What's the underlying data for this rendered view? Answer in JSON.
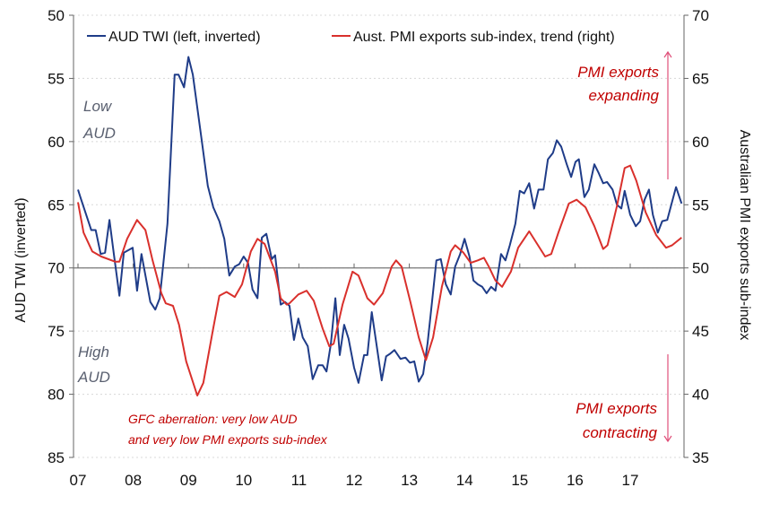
{
  "chart_data": {
    "type": "line",
    "title": "",
    "xlabel": "",
    "x_ticks": [
      "07",
      "08",
      "09",
      "10",
      "11",
      "12",
      "13",
      "14",
      "15",
      "16",
      "17"
    ],
    "x_tick_years": [
      2007,
      2008,
      2009,
      2010,
      2011,
      2012,
      2013,
      2014,
      2015,
      2016,
      2017
    ],
    "xlim": [
      2006.9,
      2018.0
    ],
    "left_axis": {
      "label": "AUD TWI (inverted)",
      "ylim": [
        50,
        85
      ],
      "inverted": true,
      "ticks": [
        "50",
        "55",
        "60",
        "65",
        "70",
        "75",
        "80",
        "85"
      ]
    },
    "right_axis": {
      "label": "Australian PMI exports sub-index",
      "ylim": [
        35,
        70
      ],
      "ticks": [
        "70",
        "65",
        "60",
        "55",
        "50",
        "45",
        "40",
        "35"
      ]
    },
    "reference_line": {
      "axis": "left",
      "value": 70
    },
    "grid": true,
    "legend": {
      "placement": "top",
      "entries": [
        "AUD TWI (left, inverted)",
        "Aust. PMI exports sub-index, trend (right)"
      ]
    },
    "series": [
      {
        "name": "AUD TWI (left, inverted)",
        "axis": "left",
        "color": "#1f3c88",
        "x": [
          2007.0,
          2007.05,
          2007.24,
          2007.32,
          2007.41,
          2007.49,
          2007.57,
          2007.65,
          2007.75,
          2007.83,
          2007.99,
          2008.07,
          2008.15,
          2008.31,
          2008.4,
          2008.48,
          2008.62,
          2008.75,
          2008.82,
          2008.92,
          2009.0,
          2009.08,
          2009.24,
          2009.35,
          2009.45,
          2009.56,
          2009.65,
          2009.74,
          2009.84,
          2009.92,
          2010.0,
          2010.08,
          2010.16,
          2010.25,
          2010.33,
          2010.41,
          2010.51,
          2010.57,
          2010.67,
          2010.75,
          2010.83,
          2010.91,
          2010.99,
          2011.07,
          2011.16,
          2011.25,
          2011.35,
          2011.43,
          2011.5,
          2011.58,
          2011.66,
          2011.74,
          2011.82,
          2011.9,
          2012.0,
          2012.08,
          2012.18,
          2012.24,
          2012.32,
          2012.42,
          2012.5,
          2012.58,
          2012.65,
          2012.73,
          2012.84,
          2012.93,
          2013.01,
          2013.09,
          2013.17,
          2013.25,
          2013.33,
          2013.41,
          2013.49,
          2013.57,
          2013.66,
          2013.75,
          2013.83,
          2013.92,
          2014.0,
          2014.09,
          2014.16,
          2014.24,
          2014.32,
          2014.4,
          2014.48,
          2014.56,
          2014.66,
          2014.74,
          2014.82,
          2014.92,
          2015.0,
          2015.08,
          2015.17,
          2015.26,
          2015.34,
          2015.43,
          2015.51,
          2015.6,
          2015.67,
          2015.75,
          2015.85,
          2015.93,
          2016.01,
          2016.07,
          2016.17,
          2016.25,
          2016.35,
          2016.43,
          2016.51,
          2016.58,
          2016.68,
          2016.76,
          2016.84,
          2016.9,
          2017.0,
          2017.1,
          2017.18,
          2017.26,
          2017.34,
          2017.41,
          2017.5,
          2017.58,
          2017.67,
          2017.75,
          2017.83,
          2017.93
        ],
        "y": [
          63.8,
          64.5,
          67.0,
          67.0,
          68.9,
          68.8,
          66.2,
          68.9,
          72.2,
          68.8,
          68.4,
          71.8,
          68.9,
          72.7,
          73.3,
          72.4,
          66.5,
          54.7,
          54.7,
          55.7,
          53.3,
          54.7,
          59.9,
          63.5,
          65.2,
          66.3,
          67.7,
          70.6,
          69.9,
          69.7,
          69.1,
          69.6,
          71.7,
          72.4,
          67.6,
          67.3,
          69.3,
          69.0,
          72.9,
          72.7,
          73.0,
          75.7,
          74.0,
          75.5,
          76.2,
          78.8,
          77.7,
          77.7,
          78.2,
          76.0,
          72.4,
          76.9,
          74.5,
          75.6,
          77.9,
          79.1,
          76.9,
          76.9,
          73.5,
          76.5,
          78.9,
          77.0,
          76.8,
          76.5,
          77.2,
          77.1,
          77.5,
          77.4,
          79.0,
          78.4,
          76.0,
          72.7,
          69.4,
          69.3,
          71.3,
          72.1,
          69.9,
          68.9,
          67.7,
          69.1,
          71.0,
          71.3,
          71.5,
          72.0,
          71.5,
          71.8,
          68.9,
          69.4,
          68.2,
          66.5,
          63.9,
          64.1,
          63.3,
          65.3,
          63.8,
          63.8,
          61.4,
          60.9,
          59.9,
          60.4,
          61.8,
          62.8,
          61.6,
          61.4,
          64.4,
          63.8,
          61.8,
          62.5,
          63.3,
          63.2,
          63.8,
          65.0,
          65.3,
          63.9,
          65.8,
          66.7,
          66.3,
          64.6,
          63.8,
          65.8,
          67.2,
          66.3,
          66.2,
          64.9,
          63.6,
          64.9
        ]
      },
      {
        "name": "Aust. PMI exports sub-index, trend (right)",
        "axis": "right",
        "color": "#d9302c",
        "x": [
          2007.0,
          2007.1,
          2007.26,
          2007.42,
          2007.67,
          2007.75,
          2007.89,
          2008.07,
          2008.22,
          2008.35,
          2008.51,
          2008.59,
          2008.72,
          2008.83,
          2008.96,
          2009.16,
          2009.27,
          2009.44,
          2009.56,
          2009.69,
          2009.84,
          2009.97,
          2010.13,
          2010.25,
          2010.38,
          2010.57,
          2010.67,
          2010.78,
          2010.83,
          2010.99,
          2011.14,
          2011.27,
          2011.43,
          2011.55,
          2011.63,
          2011.79,
          2011.97,
          2012.08,
          2012.24,
          2012.36,
          2012.52,
          2012.68,
          2012.76,
          2012.86,
          2013.02,
          2013.17,
          2013.3,
          2013.43,
          2013.59,
          2013.75,
          2013.83,
          2013.98,
          2014.11,
          2014.24,
          2014.35,
          2014.44,
          2014.56,
          2014.68,
          2014.84,
          2014.97,
          2015.17,
          2015.33,
          2015.46,
          2015.57,
          2015.7,
          2015.89,
          2016.03,
          2016.19,
          2016.35,
          2016.51,
          2016.59,
          2016.76,
          2016.9,
          2017.0,
          2017.11,
          2017.28,
          2017.47,
          2017.65,
          2017.76,
          2017.93
        ],
        "y": [
          55.2,
          52.8,
          51.3,
          50.9,
          50.5,
          50.5,
          52.3,
          53.8,
          53.0,
          50.6,
          48.0,
          47.2,
          47.0,
          45.5,
          42.6,
          39.9,
          40.9,
          45.0,
          47.8,
          48.1,
          47.7,
          48.7,
          51.3,
          52.3,
          51.9,
          49.7,
          47.6,
          47.1,
          47.2,
          47.9,
          48.2,
          47.4,
          45.2,
          43.8,
          44.0,
          47.1,
          49.7,
          49.4,
          47.6,
          47.1,
          48.0,
          50.1,
          50.6,
          50.1,
          47.3,
          44.5,
          42.7,
          44.5,
          48.5,
          51.3,
          51.8,
          51.2,
          50.4,
          50.6,
          50.8,
          50.1,
          49.0,
          48.5,
          49.7,
          51.6,
          52.9,
          51.8,
          50.9,
          51.1,
          52.8,
          55.1,
          55.4,
          54.8,
          53.3,
          51.5,
          51.8,
          54.9,
          57.9,
          58.1,
          56.9,
          54.4,
          52.6,
          51.6,
          51.8,
          52.4
        ]
      }
    ],
    "annotations": {
      "low_aud": [
        "Low",
        "AUD"
      ],
      "high_aud": [
        "High",
        "AUD"
      ],
      "expanding": [
        "PMI exports",
        "expanding"
      ],
      "contracting": [
        "PMI exports",
        "contracting"
      ],
      "gfc": [
        "GFC aberration: very low AUD",
        "and very low PMI exports sub-index"
      ]
    }
  }
}
